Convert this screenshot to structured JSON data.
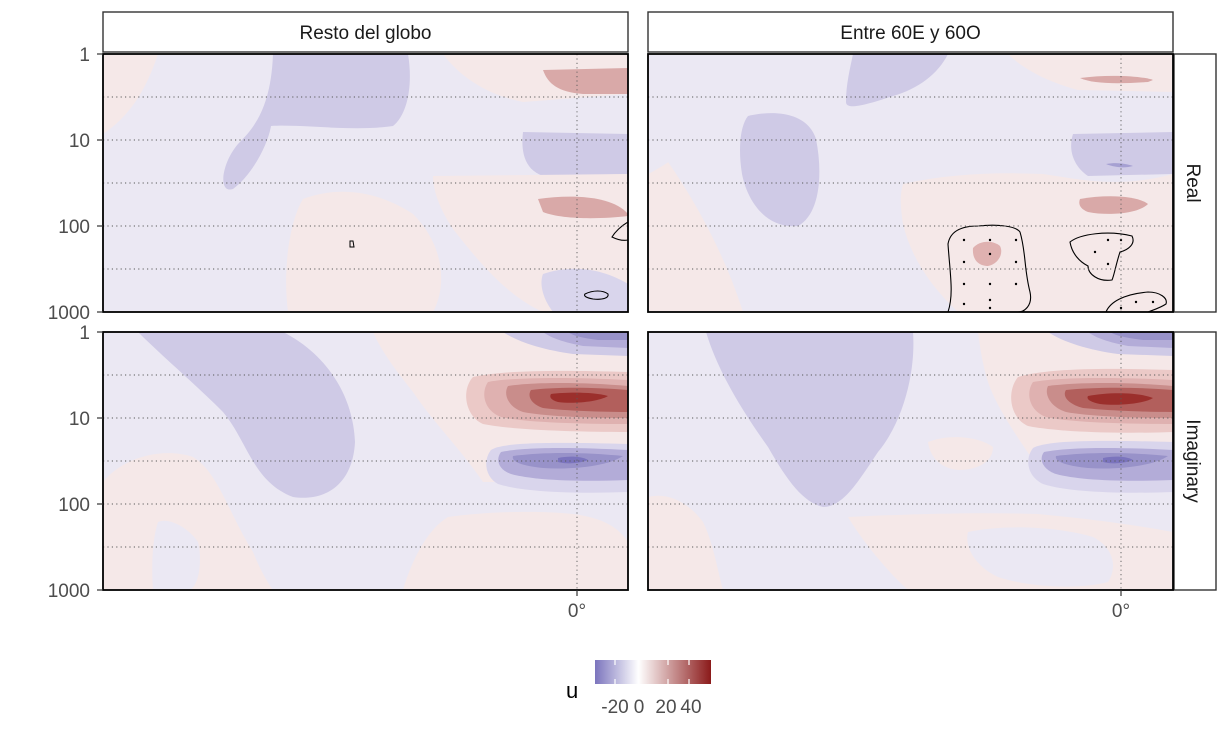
{
  "chart_data": {
    "type": "heatmap",
    "variable": "u",
    "facets": {
      "columns": [
        "Resto del globo",
        "Entre 60E y 60O"
      ],
      "rows": [
        "Real",
        "Imaginary"
      ]
    },
    "x_ticks": [
      "0°"
    ],
    "y_axis": {
      "scale": "log",
      "reversed": true,
      "ticks": [
        "1",
        "10",
        "100",
        "1000"
      ],
      "ylim": [
        1000,
        1
      ]
    },
    "legend": {
      "title": "u",
      "labels": [
        "-20",
        "0",
        "20",
        "40"
      ],
      "range": [
        -30,
        50
      ],
      "colors": {
        "low": "#7b74bd",
        "mid": "#ffffff",
        "high": "#8b1a1a"
      }
    },
    "panels": [
      {
        "column": "Resto del globo",
        "row": "Real",
        "features": [
          {
            "sign": "neg",
            "level": 1,
            "desc": "upper-left tongue"
          },
          {
            "sign": "pos",
            "level": 2,
            "desc": "near 0°, ~2.5 hPa"
          },
          {
            "sign": "neg",
            "level": 1,
            "desc": "near 0°, ~15 hPa"
          },
          {
            "sign": "pos",
            "level": 2,
            "desc": "east of 0°, ~70 hPa"
          },
          {
            "sign": "pos",
            "level": 1,
            "desc": "lower middle"
          }
        ],
        "significance_contours": 3
      },
      {
        "column": "Entre 60E y 60O",
        "row": "Real",
        "features": [
          {
            "sign": "neg",
            "level": 1,
            "desc": "upper-left and west oval"
          },
          {
            "sign": "pos",
            "level": 2,
            "desc": "near 0°, ~2.5 hPa"
          },
          {
            "sign": "neg",
            "level": 2,
            "desc": "near 0°, ~15 hPa"
          },
          {
            "sign": "pos",
            "level": 2,
            "desc": "near 0°, ~70 hPa"
          },
          {
            "sign": "pos",
            "level": 2,
            "desc": "~220 hPa"
          }
        ],
        "significance_contours": 3
      },
      {
        "column": "Resto del globo",
        "row": "Imaginary",
        "features": [
          {
            "sign": "neg",
            "level": 1,
            "desc": "upper-left tongue"
          },
          {
            "sign": "neg",
            "level": 2,
            "desc": "near 0°, ~1.2 hPa"
          },
          {
            "sign": "pos",
            "level": 5,
            "desc": "near 0°, ~6 hPa maximum"
          },
          {
            "sign": "neg",
            "level": 3,
            "desc": "near 0°, ~30 hPa minimum"
          },
          {
            "sign": "pos",
            "level": 1,
            "desc": "lower left"
          }
        ],
        "significance_contours": 0
      },
      {
        "column": "Entre 60E y 60O",
        "row": "Imaginary",
        "features": [
          {
            "sign": "neg",
            "level": 1,
            "desc": "central tongue"
          },
          {
            "sign": "neg",
            "level": 2,
            "desc": "near 0°, ~1.2 hPa"
          },
          {
            "sign": "pos",
            "level": 5,
            "desc": "near 0°, ~6 hPa maximum"
          },
          {
            "sign": "neg",
            "level": 3,
            "desc": "near 0°, ~30 hPa minimum"
          },
          {
            "sign": "pos",
            "level": 1,
            "desc": "lower middle"
          }
        ],
        "significance_contours": 0
      }
    ]
  }
}
